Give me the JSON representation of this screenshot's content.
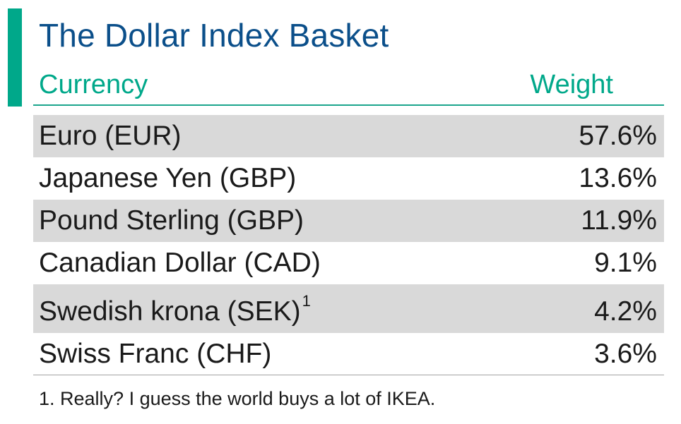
{
  "chart_data": {
    "type": "table",
    "title": "The Dollar Index Basket",
    "columns": [
      "Currency",
      "Weight"
    ],
    "rows": [
      {
        "currency": "Euro (EUR)",
        "weight": "57.6%",
        "value": 57.6,
        "shaded": true
      },
      {
        "currency": "Japanese Yen (GBP)",
        "weight": "13.6%",
        "value": 13.6,
        "shaded": false
      },
      {
        "currency": "Pound Sterling (GBP)",
        "weight": "11.9%",
        "value": 11.9,
        "shaded": true
      },
      {
        "currency": "Canadian Dollar (CAD)",
        "weight": "9.1%",
        "value": 9.1,
        "shaded": false
      },
      {
        "currency": "Swedish krona (SEK)",
        "weight": "4.2%",
        "value": 4.2,
        "shaded": true,
        "note": "1"
      },
      {
        "currency": "Swiss Franc (CHF)",
        "weight": "3.6%",
        "value": 3.6,
        "shaded": false
      }
    ],
    "footnote": "1. Really? I guess the world buys a lot of IKEA."
  },
  "colors": {
    "accent": "#00a88a",
    "title": "#0b4f8a",
    "row_shade": "#d9d9d9",
    "text": "#1a1a1a"
  }
}
